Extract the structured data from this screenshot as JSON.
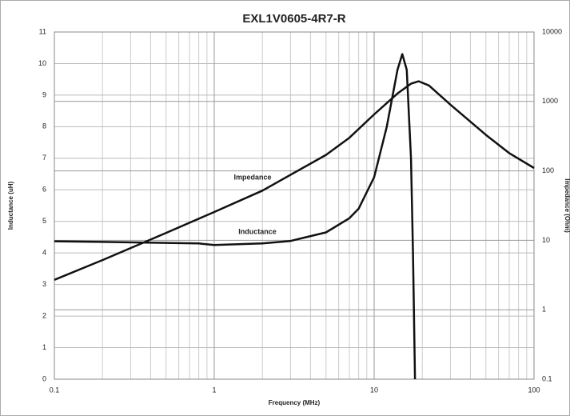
{
  "chart_data": {
    "type": "line",
    "title": "EXL1V0605-4R7-R",
    "x_label": "Frequency (MHz)",
    "y_label": "Inductance (uH)",
    "y2_label": "Impedance (Ohm)",
    "xscale": "log",
    "y2scale": "log",
    "grid": true,
    "xlim": [
      0.1,
      100
    ],
    "xticks": [
      0.1,
      1,
      10,
      100
    ],
    "x_minor_grid": [
      0.2,
      0.3,
      0.4,
      0.5,
      0.6,
      0.7,
      0.8,
      0.9,
      2,
      3,
      4,
      5,
      6,
      7,
      8,
      9,
      20,
      30,
      40,
      50,
      60,
      70,
      80,
      90
    ],
    "ylim": [
      0,
      11
    ],
    "yticks": [
      0,
      1,
      2,
      3,
      4,
      5,
      6,
      7,
      8,
      9,
      10,
      11
    ],
    "y2lim": [
      0.1,
      10000
    ],
    "y2ticks": [
      0.1,
      1,
      10,
      100,
      1000,
      10000
    ],
    "series": [
      {
        "name": "Inductance",
        "color": "#111111",
        "x": [
          0.1,
          0.2,
          0.5,
          0.8,
          1,
          2,
          3,
          5,
          7,
          8,
          10,
          12,
          14,
          15,
          16,
          17,
          17.5,
          18
        ],
        "values": [
          4.37,
          4.35,
          4.32,
          4.3,
          4.25,
          4.3,
          4.38,
          4.65,
          5.1,
          5.4,
          6.4,
          8.0,
          9.8,
          10.3,
          9.8,
          7,
          4,
          0
        ]
      },
      {
        "name": "Impedance",
        "color": "#111111",
        "axis": "y2",
        "x": [
          0.1,
          0.2,
          0.5,
          1,
          2,
          5,
          7,
          10,
          14,
          17,
          19,
          22,
          30,
          50,
          70,
          100
        ],
        "values": [
          2.7,
          5.2,
          12.8,
          25.6,
          52,
          170,
          300,
          650,
          1300,
          1800,
          1950,
          1700,
          900,
          330,
          180,
          110
        ]
      }
    ],
    "annotations": [
      "Impedance",
      "Inductance"
    ]
  }
}
